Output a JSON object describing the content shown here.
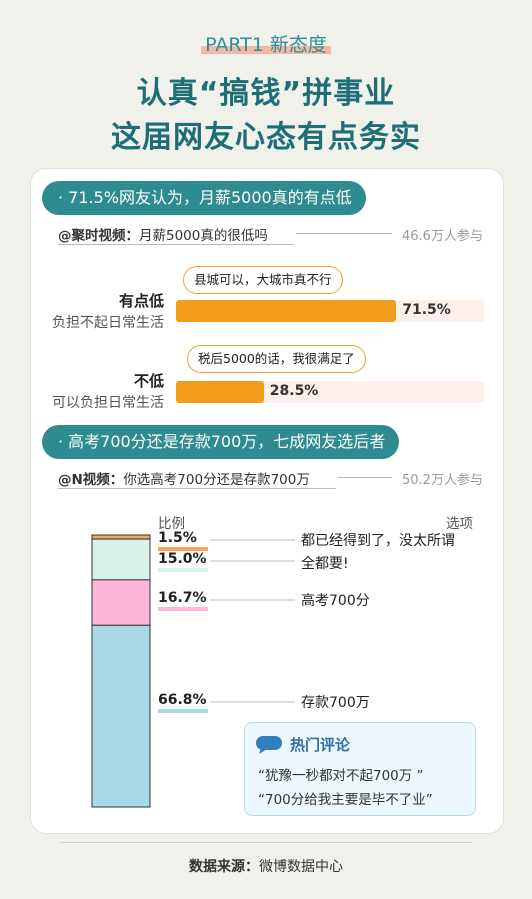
{
  "header": {
    "part_tag": "PART1 新态度",
    "title_line1": "认真“搞钱”拼事业",
    "title_line2": "这届网友心态有点务实"
  },
  "section1": {
    "pill": "· 71.5%网友认为，月薪5000真的有点低",
    "source_account": "@聚时视频：",
    "source_question": "月薪5000真的很低吗",
    "participants": "46.6万人参与",
    "options": [
      {
        "label": "有点低",
        "sublabel": "负担不起日常生活",
        "bubble": "县城可以，大城市真不行",
        "value": 71.5,
        "pct_label": "71.5%"
      },
      {
        "label": "不低",
        "sublabel": "可以负担日常生活",
        "bubble": "税后5000的话，我很满足了",
        "value": 28.5,
        "pct_label": "28.5%"
      }
    ]
  },
  "section2": {
    "pill": "· 高考700分还是存款700万，七成网友选后者",
    "source_account": "@N视频：",
    "source_question": "你选高考700分还是存款700万",
    "participants": "50.2万人参与",
    "col_ratio": "比例",
    "col_option": "选项",
    "choice_texts": {
      "c1_line1": "都已经得到了，没太所谓",
      "c1_line2": "全都要!",
      "c2": "高考700分",
      "c3": "存款700万"
    },
    "hot_comments": {
      "title": "热门评论",
      "lines": [
        "“犹豫一秒都对不起700万 ”",
        "“700分给我主要是毕不了业”"
      ]
    }
  },
  "chart_data": [
    {
      "type": "bar",
      "orientation": "horizontal",
      "title": "71.5%网友认为，月薪5000真的有点低",
      "categories": [
        "有点低",
        "不低"
      ],
      "values": [
        71.5,
        28.5
      ],
      "ylim": [
        0,
        100
      ]
    },
    {
      "type": "bar",
      "stacked": true,
      "title": "高考700分还是存款700万，七成网友选后者",
      "categories": [
        "都已经得到了，没太所谓",
        "全都要!",
        "高考700分",
        "存款700万"
      ],
      "values": [
        1.5,
        15.0,
        16.7,
        66.8
      ],
      "labels": [
        "1.5%",
        "15.0%",
        "16.7%",
        "66.8%"
      ],
      "colors": [
        "#f5a55c",
        "#d7f2e8",
        "#fcb6d8",
        "#a9d8e8"
      ]
    }
  ],
  "footer": {
    "label": "数据来源：",
    "value": "微博数据中心"
  },
  "colors": {
    "accent": "#2e8b91",
    "bar": "#f29d1c",
    "bar_bg": "#fbf1ea"
  }
}
